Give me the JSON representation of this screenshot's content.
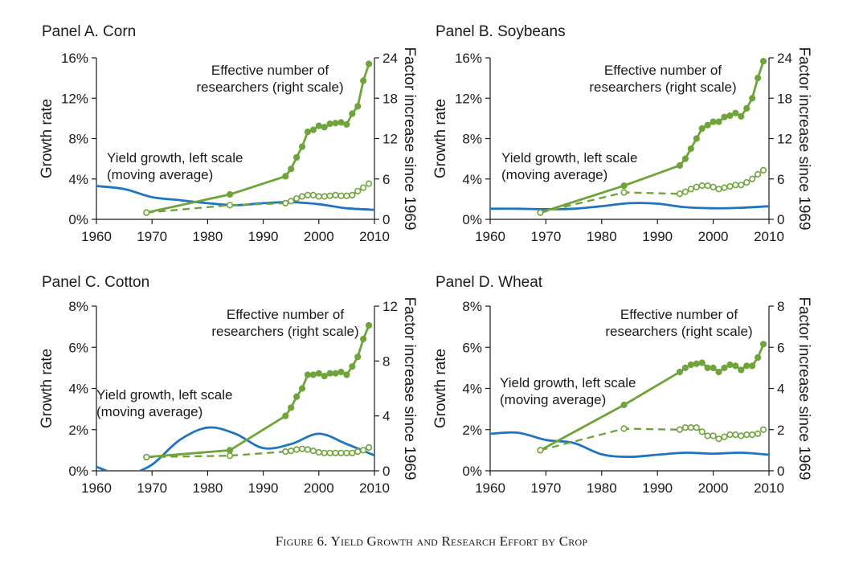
{
  "figure_caption": "Figure 6. Yield Growth and Research Effort by Crop",
  "colors": {
    "yield": "#1f74c2",
    "researchers": "#6fa43a",
    "axis": "#1a1a1a"
  },
  "chart_data": [
    {
      "type": "line",
      "title": "Panel A. Corn",
      "ylabel": "Growth rate",
      "y2label": "Factor increase since 1969",
      "xlim": [
        1960,
        2010
      ],
      "ylim": [
        0,
        0.16
      ],
      "y2lim": [
        0,
        24
      ],
      "xticks": [
        "1960",
        "1970",
        "1980",
        "1990",
        "2000",
        "2010"
      ],
      "yticks": [
        "0%",
        "4%",
        "8%",
        "12%",
        "16%"
      ],
      "y2ticks": [
        "0",
        "6",
        "12",
        "18",
        "24"
      ],
      "annotations": [
        "Effective number of",
        "researchers (right scale)",
        "Yield growth, left scale",
        "(moving average)"
      ],
      "series": [
        {
          "name": "Yield growth, left scale (moving average)",
          "axis": "left",
          "style": "solid-smooth",
          "x": [
            1960,
            1965,
            1970,
            1975,
            1980,
            1985,
            1990,
            1995,
            2000,
            2005,
            2010
          ],
          "y": [
            0.033,
            0.03,
            0.022,
            0.019,
            0.016,
            0.014,
            0.016,
            0.017,
            0.015,
            0.011,
            0.0095
          ]
        },
        {
          "name": "Effective number of researchers (right scale)",
          "axis": "right",
          "style": "solid-markers",
          "x": [
            1969,
            1984,
            1994,
            1995,
            1996,
            1997,
            1998,
            1999,
            2000,
            2001,
            2002,
            2003,
            2004,
            2005,
            2006,
            2007,
            2008,
            2009
          ],
          "y": [
            1.0,
            3.7,
            6.4,
            7.5,
            9.2,
            10.8,
            13.0,
            13.3,
            13.9,
            13.7,
            14.2,
            14.3,
            14.4,
            14.1,
            15.7,
            16.8,
            20.6,
            23.1
          ]
        },
        {
          "style": "dashed-markers",
          "axis": "right",
          "x": [
            1969,
            1984,
            1994,
            1995,
            1996,
            1997,
            1998,
            1999,
            2000,
            2001,
            2002,
            2003,
            2004,
            2005,
            2006,
            2007,
            2008,
            2009
          ],
          "y": [
            1.0,
            2.1,
            2.4,
            2.7,
            3.1,
            3.4,
            3.6,
            3.6,
            3.4,
            3.4,
            3.5,
            3.6,
            3.5,
            3.5,
            3.6,
            4.2,
            4.7,
            5.3
          ]
        }
      ]
    },
    {
      "type": "line",
      "title": "Panel B. Soybeans",
      "ylabel": "Growth rate",
      "y2label": "Factor increase since 1969",
      "xlim": [
        1960,
        2010
      ],
      "ylim": [
        0,
        0.16
      ],
      "y2lim": [
        0,
        24
      ],
      "xticks": [
        "1960",
        "1970",
        "1980",
        "1990",
        "2000",
        "2010"
      ],
      "yticks": [
        "0%",
        "4%",
        "8%",
        "12%",
        "16%"
      ],
      "y2ticks": [
        "0",
        "6",
        "12",
        "18",
        "24"
      ],
      "annotations": [
        "Effective number of",
        "researchers (right scale)",
        "Yield growth, left scale",
        "(moving average)"
      ],
      "series": [
        {
          "name": "Yield growth, left scale (moving average)",
          "axis": "left",
          "style": "solid-smooth",
          "x": [
            1960,
            1965,
            1970,
            1975,
            1980,
            1985,
            1990,
            1995,
            2000,
            2005,
            2010
          ],
          "y": [
            0.0105,
            0.0105,
            0.01,
            0.0105,
            0.013,
            0.016,
            0.0155,
            0.012,
            0.011,
            0.0115,
            0.013
          ]
        },
        {
          "name": "Effective number of researchers (right scale)",
          "axis": "right",
          "style": "solid-markers",
          "x": [
            1969,
            1984,
            1994,
            1995,
            1996,
            1997,
            1998,
            1999,
            2000,
            2001,
            2002,
            2003,
            2004,
            2005,
            2006,
            2007,
            2008,
            2009
          ],
          "y": [
            1.0,
            5.0,
            8.0,
            9.0,
            10.5,
            12.0,
            13.5,
            14.0,
            14.5,
            14.5,
            15.2,
            15.4,
            15.8,
            15.3,
            16.5,
            18.0,
            21.0,
            23.5
          ]
        },
        {
          "style": "dashed-markers",
          "axis": "right",
          "x": [
            1969,
            1984,
            1994,
            1995,
            1996,
            1997,
            1998,
            1999,
            2000,
            2001,
            2002,
            2003,
            2004,
            2005,
            2006,
            2007,
            2008,
            2009
          ],
          "y": [
            1.0,
            4.0,
            3.8,
            4.1,
            4.5,
            4.8,
            5.0,
            5.0,
            4.8,
            4.5,
            4.7,
            4.9,
            5.1,
            5.1,
            5.5,
            6.0,
            6.7,
            7.3
          ]
        }
      ]
    },
    {
      "type": "line",
      "title": "Panel C. Cotton",
      "ylabel": "Growth rate",
      "y2label": "Factor increase since 1969",
      "xlim": [
        1960,
        2010
      ],
      "ylim": [
        0,
        0.08
      ],
      "y2lim": [
        0,
        12
      ],
      "xticks": [
        "1960",
        "1970",
        "1980",
        "1990",
        "2000",
        "2010"
      ],
      "yticks": [
        "0%",
        "2%",
        "4%",
        "6%",
        "8%"
      ],
      "y2ticks": [
        "0",
        "4",
        "8",
        "12"
      ],
      "annotations": [
        "Effective number of",
        "researchers (right scale)",
        "Yield growth, left scale",
        "(moving average)"
      ],
      "series": [
        {
          "name": "Yield growth, left scale (moving average)",
          "axis": "left",
          "style": "solid-smooth",
          "x": [
            1960,
            1963,
            1966,
            1970,
            1975,
            1980,
            1985,
            1990,
            1995,
            2000,
            2005,
            2010
          ],
          "y": [
            0.002,
            -0.001,
            -0.0015,
            0.003,
            0.015,
            0.021,
            0.018,
            0.011,
            0.013,
            0.018,
            0.013,
            0.0075
          ]
        },
        {
          "name": "Effective number of researchers (right scale)",
          "axis": "right",
          "style": "solid-markers",
          "x": [
            1969,
            1984,
            1994,
            1995,
            1996,
            1997,
            1998,
            1999,
            2000,
            2001,
            2002,
            2003,
            2004,
            2005,
            2006,
            2007,
            2008,
            2009
          ],
          "y": [
            1.0,
            1.5,
            4.0,
            4.6,
            5.4,
            6.0,
            7.0,
            7.0,
            7.1,
            6.9,
            7.1,
            7.1,
            7.2,
            7.0,
            7.6,
            8.3,
            9.6,
            10.6
          ]
        },
        {
          "style": "dashed-markers",
          "axis": "right",
          "x": [
            1969,
            1984,
            1994,
            1995,
            1996,
            1997,
            1998,
            1999,
            2000,
            2001,
            2002,
            2003,
            2004,
            2005,
            2006,
            2007,
            2008,
            2009
          ],
          "y": [
            1.0,
            1.1,
            1.4,
            1.45,
            1.55,
            1.6,
            1.55,
            1.45,
            1.35,
            1.3,
            1.3,
            1.3,
            1.3,
            1.3,
            1.3,
            1.4,
            1.5,
            1.7
          ]
        }
      ]
    },
    {
      "type": "line",
      "title": "Panel D. Wheat",
      "ylabel": "Growth rate",
      "y2label": "Factor increase since 1969",
      "xlim": [
        1960,
        2010
      ],
      "ylim": [
        0,
        0.08
      ],
      "y2lim": [
        0,
        8
      ],
      "xticks": [
        "1960",
        "1970",
        "1980",
        "1990",
        "2000",
        "2010"
      ],
      "yticks": [
        "0%",
        "2%",
        "4%",
        "6%",
        "8%"
      ],
      "y2ticks": [
        "0",
        "2",
        "4",
        "6",
        "8"
      ],
      "annotations": [
        "Effective number of",
        "researchers (right scale)",
        "Yield growth, left scale",
        "(moving average)"
      ],
      "series": [
        {
          "name": "Yield growth, left scale (moving average)",
          "axis": "left",
          "style": "solid-smooth",
          "x": [
            1960,
            1965,
            1970,
            1975,
            1980,
            1985,
            1990,
            1995,
            2000,
            2005,
            2010
          ],
          "y": [
            0.018,
            0.0185,
            0.015,
            0.0135,
            0.008,
            0.0068,
            0.0078,
            0.0088,
            0.0083,
            0.0088,
            0.0078
          ]
        },
        {
          "name": "Effective number of researchers (right scale)",
          "axis": "right",
          "style": "solid-markers",
          "x": [
            1969,
            1984,
            1994,
            1995,
            1996,
            1997,
            1998,
            1999,
            2000,
            2001,
            2002,
            2003,
            2004,
            2005,
            2006,
            2007,
            2008,
            2009
          ],
          "y": [
            1.0,
            3.2,
            4.8,
            5.0,
            5.15,
            5.2,
            5.25,
            5.0,
            5.0,
            4.8,
            5.0,
            5.15,
            5.1,
            4.9,
            5.1,
            5.1,
            5.5,
            6.15
          ]
        },
        {
          "style": "dashed-markers",
          "axis": "right",
          "x": [
            1969,
            1984,
            1994,
            1995,
            1996,
            1997,
            1998,
            1999,
            2000,
            2001,
            2002,
            2003,
            2004,
            2005,
            2006,
            2007,
            2008,
            2009
          ],
          "y": [
            1.0,
            2.05,
            2.0,
            2.1,
            2.1,
            2.1,
            1.9,
            1.7,
            1.7,
            1.55,
            1.65,
            1.75,
            1.75,
            1.7,
            1.75,
            1.75,
            1.8,
            2.0
          ]
        }
      ]
    }
  ]
}
